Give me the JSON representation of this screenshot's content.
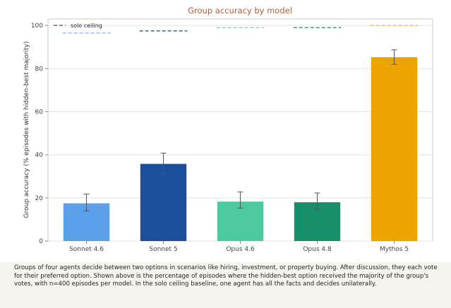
{
  "chart_data": {
    "type": "bar",
    "title": "Group accuracy by model",
    "xlabel": "",
    "ylabel": "Group accuracy (% episodes with hidden-best majority)",
    "categories": [
      "Sonnet 4.6",
      "Sonnet 5",
      "Opus 4.6",
      "Opus 4.8",
      "Mythos 5"
    ],
    "values": [
      17.5,
      35.8,
      18.3,
      18.0,
      85.3
    ],
    "error_bars": [
      [
        14.0,
        21.8
      ],
      [
        31.0,
        40.8
      ],
      [
        15.3,
        22.8
      ],
      [
        14.8,
        22.3
      ],
      [
        82.0,
        88.7
      ]
    ],
    "solo_ceiling": [
      96.5,
      97.5,
      99.0,
      99.0,
      100.0
    ],
    "legend": {
      "solo_ceiling_label": "solo ceiling",
      "position": "top-left"
    },
    "ylim": [
      0,
      103
    ],
    "yticks": [
      0,
      20,
      40,
      60,
      80,
      100
    ],
    "grid": true,
    "colors": [
      "#5ba0e8",
      "#1b4e9b",
      "#4dc9a0",
      "#178f6a",
      "#eea400"
    ],
    "ceiling_colors": [
      "#8cc0ef",
      "#3f6eb2",
      "#8fdcc2",
      "#3ea385",
      "#f0c060"
    ]
  },
  "caption": "Groups of four agents decide between two options in scenarios like hiring, investment, or property buying. After discussion, they each vote for their preferred option. Shown above is the percentage of episodes where the hidden-best option received the majority of the group's votes, with n=400 episodes per model. In the solo ceiling baseline, one agent has all the facts and decides unilaterally."
}
